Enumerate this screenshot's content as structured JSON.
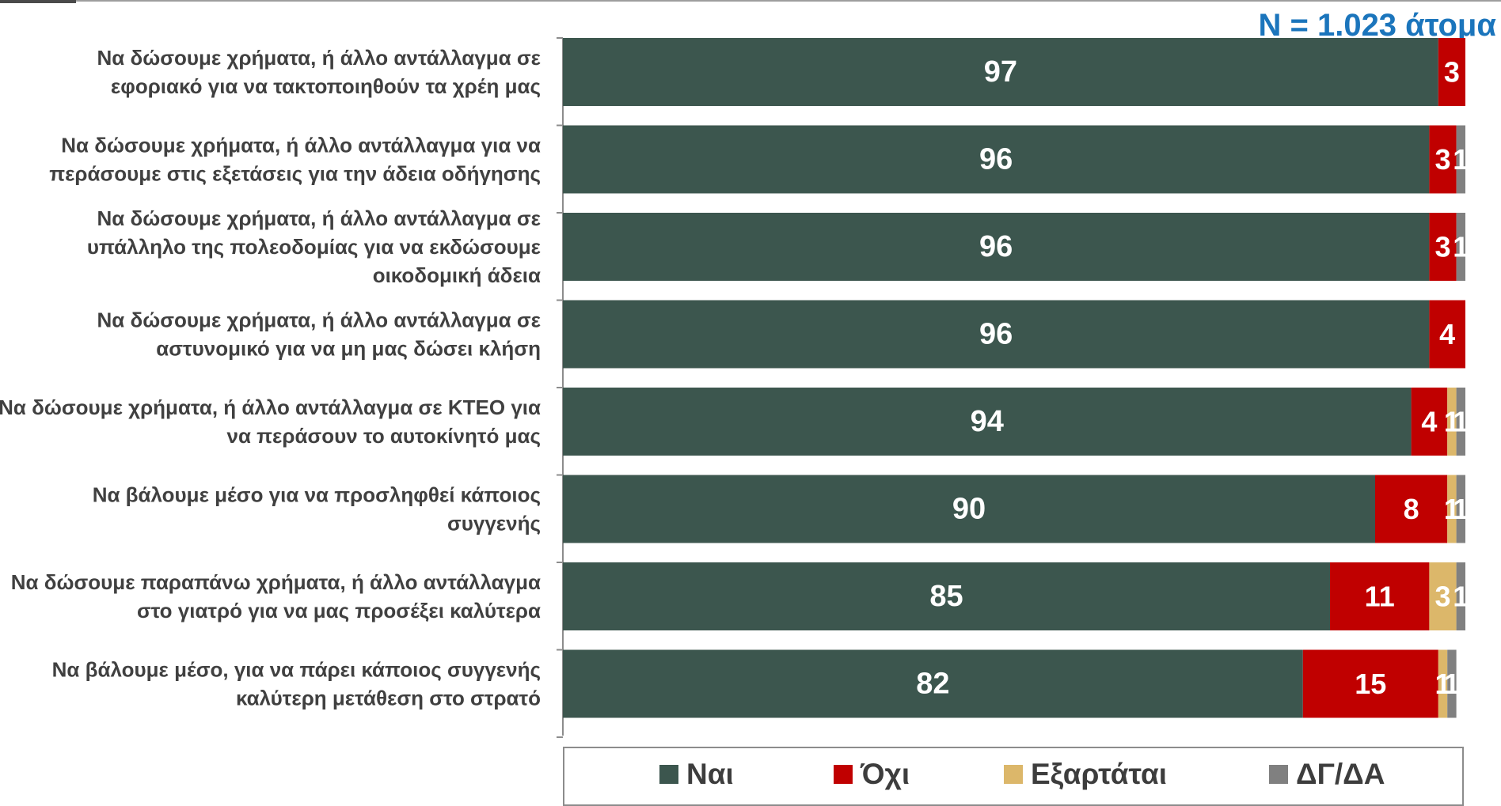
{
  "header": {
    "sample_size": "N = 1.023 άτομα"
  },
  "chart_data": {
    "type": "bar",
    "orientation": "horizontal",
    "stacked": true,
    "xlim": [
      0,
      100
    ],
    "categories": [
      "Να δώσουμε χρήματα, ή άλλο αντάλλαγμα σε εφοριακό για να τακτοποιηθούν τα χρέη μας",
      "Να δώσουμε χρήματα, ή άλλο αντάλλαγμα για να περάσουμε στις εξετάσεις για την άδεια οδήγησης",
      "Να δώσουμε χρήματα, ή άλλο αντάλλαγμα σε υπάλληλο της πολεοδομίας για να εκδώσουμε οικοδομική άδεια",
      "Να δώσουμε χρήματα, ή άλλο αντάλλαγμα σε αστυνομικό για να μη μας δώσει κλήση",
      "Να δώσουμε χρήματα, ή άλλο αντάλλαγμα σε ΚΤΕΟ για να περάσουν το αυτοκίνητό μας",
      "Να βάλουμε μέσο για να προσληφθεί κάποιος συγγενής",
      "Να δώσουμε παραπάνω χρήματα, ή άλλο αντάλλαγμα στο γιατρό για να μας προσέξει καλύτερα",
      "Να βάλουμε μέσο, για να πάρει κάποιος συγγενής καλύτερη μετάθεση στο στρατό"
    ],
    "category_lines": [
      [
        "Να δώσουμε χρήματα, ή άλλο αντάλλαγμα σε",
        "εφοριακό για να τακτοποιηθούν τα χρέη μας"
      ],
      [
        "Να δώσουμε χρήματα, ή άλλο αντάλλαγμα για να",
        "περάσουμε στις εξετάσεις για την άδεια οδήγησης"
      ],
      [
        "Να δώσουμε χρήματα, ή άλλο αντάλλαγμα σε",
        "υπάλληλο της πολεοδομίας για να εκδώσουμε",
        "οικοδομική άδεια"
      ],
      [
        "Να δώσουμε χρήματα, ή άλλο αντάλλαγμα σε",
        "αστυνομικό για να μη μας δώσει κλήση"
      ],
      [
        "Να δώσουμε χρήματα, ή άλλο αντάλλαγμα σε ΚΤΕΟ για",
        "να περάσουν το αυτοκίνητό μας"
      ],
      [
        "Να βάλουμε μέσο για να προσληφθεί κάποιος",
        "συγγενής"
      ],
      [
        "Να δώσουμε παραπάνω χρήματα, ή άλλο αντάλλαγμα",
        "στο γιατρό για να μας προσέξει καλύτερα"
      ],
      [
        "Να βάλουμε μέσο, για να πάρει κάποιος συγγενής",
        "καλύτερη μετάθεση στο στρατό"
      ]
    ],
    "series": [
      {
        "name": "Ναι",
        "color": "#3c564e",
        "values": [
          97,
          96,
          96,
          96,
          94,
          90,
          85,
          82
        ]
      },
      {
        "name": "Όχι",
        "color": "#c00000",
        "values": [
          3,
          3,
          3,
          4,
          4,
          8,
          11,
          15
        ]
      },
      {
        "name": "Εξαρτάται",
        "color": "#dcb76a",
        "values": [
          0,
          0,
          0,
          0,
          1,
          1,
          3,
          1
        ]
      },
      {
        "name": "ΔΓ/ΔΑ",
        "color": "#808080",
        "values": [
          0,
          1,
          1,
          0,
          1,
          1,
          1,
          1
        ]
      }
    ],
    "legend": {
      "position": "bottom"
    },
    "grid": false
  }
}
